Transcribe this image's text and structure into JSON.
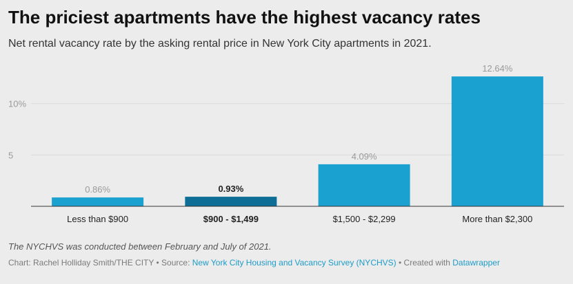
{
  "header": {
    "title": "The priciest apartments have the highest vacancy rates",
    "subtitle": "Net rental vacancy rate by the asking rental price in New York City apartments in 2021."
  },
  "chart_data": {
    "type": "bar",
    "title": "The priciest apartments have the highest vacancy rates",
    "subtitle": "Net rental vacancy rate by the asking rental price in New York City apartments in 2021.",
    "categories": [
      "Less than $900",
      "$900 - $1,499",
      "$1,500 - $2,299",
      "More than $2,300"
    ],
    "values": [
      0.86,
      0.93,
      4.09,
      12.64
    ],
    "value_labels": [
      "0.86%",
      "0.93%",
      "4.09%",
      "12.64%"
    ],
    "highlighted_index": 1,
    "y_ticks": [
      {
        "value": 5,
        "label": "5"
      },
      {
        "value": 10,
        "label": "10%"
      }
    ],
    "xlabel": "",
    "ylabel": "",
    "ylim": [
      0,
      13
    ],
    "grid": true,
    "legend": "none",
    "colors": {
      "bar": "#1ba1d0",
      "bar_highlight": "#0e6e96",
      "label": "#9a9a9a",
      "label_highlight": "#222222",
      "grid": "#dadada",
      "baseline": "#333333"
    }
  },
  "footer": {
    "note": "The NYCHVS was conducted between February and July of 2021.",
    "chart_prefix": "Chart: Rachel Holliday Smith/THE CITY • Source: ",
    "source_link": "New York City Housing and Vacancy Survey (NYCHVS)",
    "created_prefix": " • Created with ",
    "tool_link": "Datawrapper"
  }
}
